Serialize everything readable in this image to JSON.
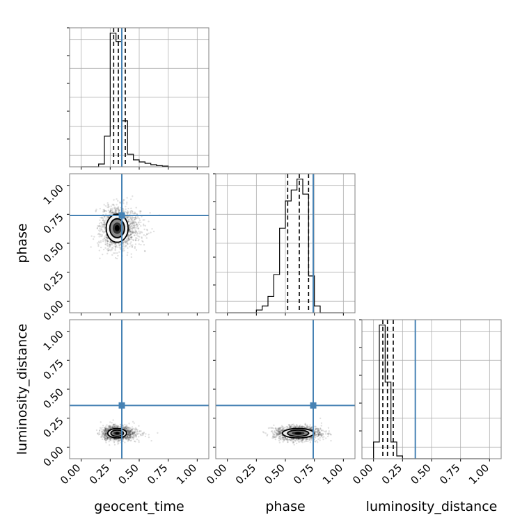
{
  "chart_data": {
    "type": "corner",
    "parameters": [
      "geocent_time",
      "phase",
      "luminosity_distance"
    ],
    "axis_range": [
      -0.1,
      1.1
    ],
    "tick_values": [
      0.0,
      0.25,
      0.5,
      0.75,
      1.0
    ],
    "tick_labels": [
      "0.00",
      "0.25",
      "0.50",
      "0.75",
      "1.00"
    ],
    "grid": true,
    "colors": {
      "truth": "#4682b4",
      "hist": "#000000",
      "samples": "#000000"
    },
    "truths": {
      "geocent_time": 0.35,
      "phase": 0.74,
      "luminosity_distance": 0.36
    },
    "histograms": [
      {
        "parameter": "geocent_time",
        "bin_edges": [
          0.0,
          0.05,
          0.1,
          0.15,
          0.2,
          0.25,
          0.3,
          0.35,
          0.4,
          0.45,
          0.5,
          0.55,
          0.6,
          0.65,
          0.7,
          0.75,
          0.8,
          0.85,
          0.9,
          0.95,
          1.0
        ],
        "heights": [
          0,
          0,
          0,
          0.02,
          0.22,
          0.96,
          0.9,
          0.33,
          0.09,
          0.05,
          0.035,
          0.025,
          0.015,
          0.008,
          0.005,
          0,
          0,
          0,
          0,
          0
        ],
        "quantiles": [
          0.28,
          0.32,
          0.38
        ]
      },
      {
        "parameter": "phase",
        "bin_edges": [
          0.0,
          0.05,
          0.1,
          0.15,
          0.2,
          0.25,
          0.3,
          0.35,
          0.4,
          0.45,
          0.5,
          0.55,
          0.6,
          0.65,
          0.7,
          0.75,
          0.8,
          0.85,
          0.9,
          0.95,
          1.0
        ],
        "heights": [
          0,
          0,
          0,
          0,
          0,
          0.02,
          0.05,
          0.12,
          0.28,
          0.62,
          0.82,
          0.9,
          0.98,
          0.87,
          0.27,
          0.05,
          0,
          0,
          0,
          0
        ],
        "quantiles": [
          0.52,
          0.62,
          0.7
        ]
      },
      {
        "parameter": "luminosity_distance",
        "bin_edges": [
          0.0,
          0.05,
          0.1,
          0.15,
          0.2,
          0.25,
          0.3,
          0.35,
          0.4,
          0.45,
          0.5,
          0.55,
          0.6,
          0.65,
          0.7,
          0.75,
          0.8,
          0.85,
          0.9,
          0.95,
          1.0
        ],
        "heights": [
          0.12,
          0.96,
          0.55,
          0.12,
          0.02,
          0,
          0,
          0,
          0,
          0,
          0,
          0,
          0,
          0,
          0,
          0,
          0,
          0,
          0,
          0
        ],
        "quantiles": [
          0.08,
          0.12,
          0.17
        ]
      }
    ],
    "pairs": [
      {
        "x": "geocent_time",
        "y": "phase",
        "center": [
          0.31,
          0.63
        ],
        "spread": [
          0.07,
          0.09
        ],
        "skew_right": 0.25
      },
      {
        "x": "geocent_time",
        "y": "luminosity_distance",
        "center": [
          0.31,
          0.12
        ],
        "spread": [
          0.06,
          0.03
        ],
        "skew_right": 0.25
      },
      {
        "x": "phase",
        "y": "luminosity_distance",
        "center": [
          0.61,
          0.12
        ],
        "spread": [
          0.1,
          0.03
        ],
        "skew_right": 0.0
      }
    ]
  }
}
